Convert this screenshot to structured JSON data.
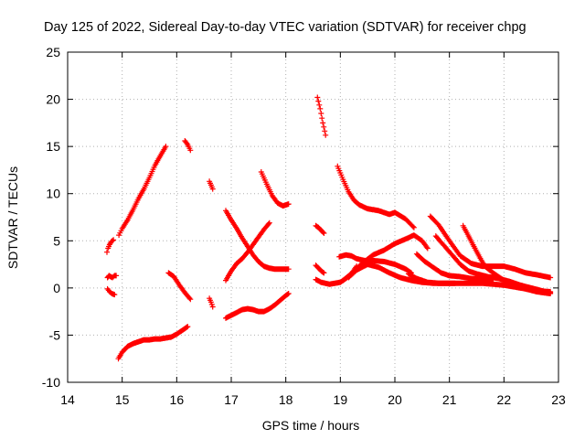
{
  "chart_data": {
    "type": "scatter",
    "title": "Day 125 of 2022, Sidereal Day-to-day VTEC variation (SDTVAR) for receiver chpg",
    "xlabel": "GPS time / hours",
    "ylabel": "SDTVAR / TECUs",
    "xlim": [
      14,
      23
    ],
    "ylim": [
      -10,
      25
    ],
    "xticks": [
      14,
      15,
      16,
      17,
      18,
      19,
      20,
      21,
      22,
      23
    ],
    "yticks": [
      -10,
      -5,
      0,
      5,
      10,
      15,
      20,
      25
    ],
    "grid": true,
    "marker": "+",
    "color": "#ff0000",
    "tracks": [
      {
        "name": "t1",
        "x": [
          14.72,
          14.74,
          14.77,
          14.8,
          14.84
        ],
        "y": [
          3.8,
          4.2,
          4.6,
          4.9,
          5.1
        ]
      },
      {
        "name": "t2",
        "x": [
          14.73,
          14.76,
          14.79,
          14.82,
          14.86,
          14.89
        ],
        "y": [
          1.1,
          1.3,
          1.2,
          1.1,
          1.3,
          1.3
        ]
      },
      {
        "name": "t3",
        "x": [
          14.73,
          14.77,
          14.81,
          14.86
        ],
        "y": [
          -0.1,
          -0.4,
          -0.6,
          -0.7
        ]
      },
      {
        "name": "t4",
        "x": [
          14.94,
          15.0,
          15.1,
          15.2,
          15.3,
          15.4,
          15.5,
          15.6,
          15.7,
          15.8
        ],
        "y": [
          5.6,
          6.3,
          7.2,
          8.3,
          9.5,
          10.5,
          11.7,
          13.0,
          14.0,
          15.0
        ]
      },
      {
        "name": "t5",
        "x": [
          14.93,
          15.0,
          15.1,
          15.2,
          15.3,
          15.4,
          15.5,
          15.6,
          15.7,
          15.8,
          15.9,
          16.0,
          16.1,
          16.2
        ],
        "y": [
          -7.5,
          -6.8,
          -6.2,
          -5.9,
          -5.7,
          -5.5,
          -5.5,
          -5.4,
          -5.4,
          -5.3,
          -5.2,
          -4.9,
          -4.5,
          -4.1
        ]
      },
      {
        "name": "t6",
        "x": [
          15.85,
          15.95,
          16.05,
          16.15,
          16.25
        ],
        "y": [
          1.6,
          1.2,
          0.3,
          -0.5,
          -1.2
        ]
      },
      {
        "name": "t7",
        "x": [
          16.15,
          16.2,
          16.25
        ],
        "y": [
          15.6,
          15.2,
          14.6
        ]
      },
      {
        "name": "t8",
        "x": [
          16.6,
          16.63,
          16.66
        ],
        "y": [
          11.3,
          10.9,
          10.5
        ]
      },
      {
        "name": "t9",
        "x": [
          16.6,
          16.63,
          16.66
        ],
        "y": [
          -1.1,
          -1.5,
          -2.0
        ]
      },
      {
        "name": "t10",
        "x": [
          16.9,
          17.0,
          17.1,
          17.2,
          17.3,
          17.4,
          17.5,
          17.6,
          17.7,
          17.8,
          17.9,
          18.05
        ],
        "y": [
          8.2,
          7.2,
          6.3,
          5.3,
          4.4,
          3.5,
          2.8,
          2.3,
          2.1,
          2.0,
          2.0,
          2.0
        ]
      },
      {
        "name": "t11",
        "x": [
          16.9,
          17.0,
          17.1,
          17.2,
          17.3,
          17.4,
          17.5,
          17.6,
          17.7
        ],
        "y": [
          0.8,
          1.8,
          2.6,
          3.1,
          3.8,
          4.6,
          5.4,
          6.2,
          6.9
        ]
      },
      {
        "name": "t12",
        "x": [
          16.9,
          17.0,
          17.1,
          17.2,
          17.3,
          17.4,
          17.5,
          17.6,
          17.7,
          17.8,
          17.9,
          18.0,
          18.05
        ],
        "y": [
          -3.2,
          -2.9,
          -2.6,
          -2.3,
          -2.2,
          -2.3,
          -2.5,
          -2.5,
          -2.2,
          -1.8,
          -1.3,
          -0.8,
          -0.6
        ]
      },
      {
        "name": "t13",
        "x": [
          17.55,
          17.65,
          17.75,
          17.85,
          17.95,
          18.05
        ],
        "y": [
          12.3,
          11.0,
          9.8,
          9.0,
          8.7,
          8.9
        ]
      },
      {
        "name": "t14",
        "x": [
          18.58,
          18.63,
          18.68,
          18.73
        ],
        "y": [
          20.2,
          19.0,
          17.5,
          16.2
        ]
      },
      {
        "name": "t15",
        "x": [
          18.55,
          18.6,
          18.65,
          18.7
        ],
        "y": [
          6.6,
          6.4,
          6.1,
          5.8
        ]
      },
      {
        "name": "t16",
        "x": [
          18.55,
          18.6,
          18.65,
          18.7
        ],
        "y": [
          2.4,
          2.1,
          1.8,
          1.6
        ]
      },
      {
        "name": "t17",
        "x": [
          18.55,
          18.65,
          18.8,
          18.9,
          19.0,
          19.1,
          19.2,
          19.3
        ],
        "y": [
          0.9,
          0.6,
          0.4,
          0.5,
          0.6,
          1.0,
          1.5,
          2.3
        ]
      },
      {
        "name": "t18",
        "x": [
          18.95,
          19.05,
          19.15,
          19.25,
          19.35,
          19.5,
          19.7,
          19.9,
          20.0,
          20.2,
          20.35
        ],
        "y": [
          12.9,
          11.5,
          10.2,
          9.3,
          8.8,
          8.4,
          8.2,
          7.8,
          8.0,
          7.3,
          6.4
        ]
      },
      {
        "name": "t19",
        "x": [
          18.98,
          19.1,
          19.2,
          19.3,
          19.45,
          19.6,
          19.8,
          20.0,
          20.2,
          20.3
        ],
        "y": [
          3.3,
          3.5,
          3.4,
          3.1,
          2.9,
          2.9,
          2.8,
          2.5,
          2.0,
          1.6
        ]
      },
      {
        "name": "t20",
        "x": [
          19.05,
          19.2,
          19.4,
          19.6,
          19.8,
          20.0,
          20.2,
          20.35,
          20.5,
          20.6
        ],
        "y": [
          0.8,
          1.5,
          2.6,
          3.5,
          4.0,
          4.7,
          5.2,
          5.6,
          5.0,
          4.2
        ]
      },
      {
        "name": "t21",
        "x": [
          19.15,
          19.3,
          19.5,
          19.7,
          19.9,
          20.1,
          20.3,
          20.5,
          20.7,
          20.9,
          21.1
        ],
        "y": [
          1.1,
          1.9,
          2.5,
          2.2,
          1.6,
          1.1,
          0.8,
          0.6,
          0.5,
          0.5,
          0.5
        ]
      },
      {
        "name": "t22",
        "x": [
          20.25,
          20.4,
          20.6,
          20.8,
          21.0,
          21.2,
          21.4,
          21.6,
          21.8,
          22.0,
          22.2,
          22.4,
          22.6,
          22.85
        ],
        "y": [
          1.5,
          1.0,
          0.6,
          0.5,
          0.5,
          0.5,
          0.5,
          0.5,
          0.4,
          0.3,
          0.1,
          -0.1,
          -0.3,
          -0.4
        ]
      },
      {
        "name": "t23",
        "x": [
          20.4,
          20.55,
          20.7,
          20.85,
          21.0,
          21.2,
          21.4,
          21.6,
          21.8
        ],
        "y": [
          3.6,
          2.8,
          2.2,
          1.6,
          1.3,
          1.2,
          1.0,
          0.9,
          0.9
        ]
      },
      {
        "name": "t24",
        "x": [
          20.65,
          20.8,
          21.0,
          21.2,
          21.4,
          21.6,
          21.8,
          22.0,
          22.2,
          22.4,
          22.6,
          22.85
        ],
        "y": [
          7.6,
          6.7,
          5.0,
          3.4,
          2.6,
          2.3,
          2.3,
          2.3,
          2.0,
          1.6,
          1.4,
          1.1
        ]
      },
      {
        "name": "t25",
        "x": [
          20.75,
          20.9,
          21.05,
          21.2,
          21.35,
          21.5,
          21.7,
          21.9,
          22.1,
          22.3,
          22.5,
          22.7,
          22.85
        ],
        "y": [
          5.5,
          4.5,
          3.5,
          2.5,
          1.8,
          1.5,
          1.2,
          1.0,
          0.7,
          0.3,
          0.0,
          -0.3,
          -0.5
        ]
      },
      {
        "name": "t26",
        "x": [
          21.25,
          21.35,
          21.45,
          21.55,
          21.65,
          21.8,
          22.0,
          22.2,
          22.4,
          22.6,
          22.85
        ],
        "y": [
          6.6,
          5.5,
          4.4,
          3.3,
          2.3,
          1.6,
          0.8,
          0.3,
          -0.1,
          -0.4,
          -0.6
        ]
      }
    ]
  }
}
